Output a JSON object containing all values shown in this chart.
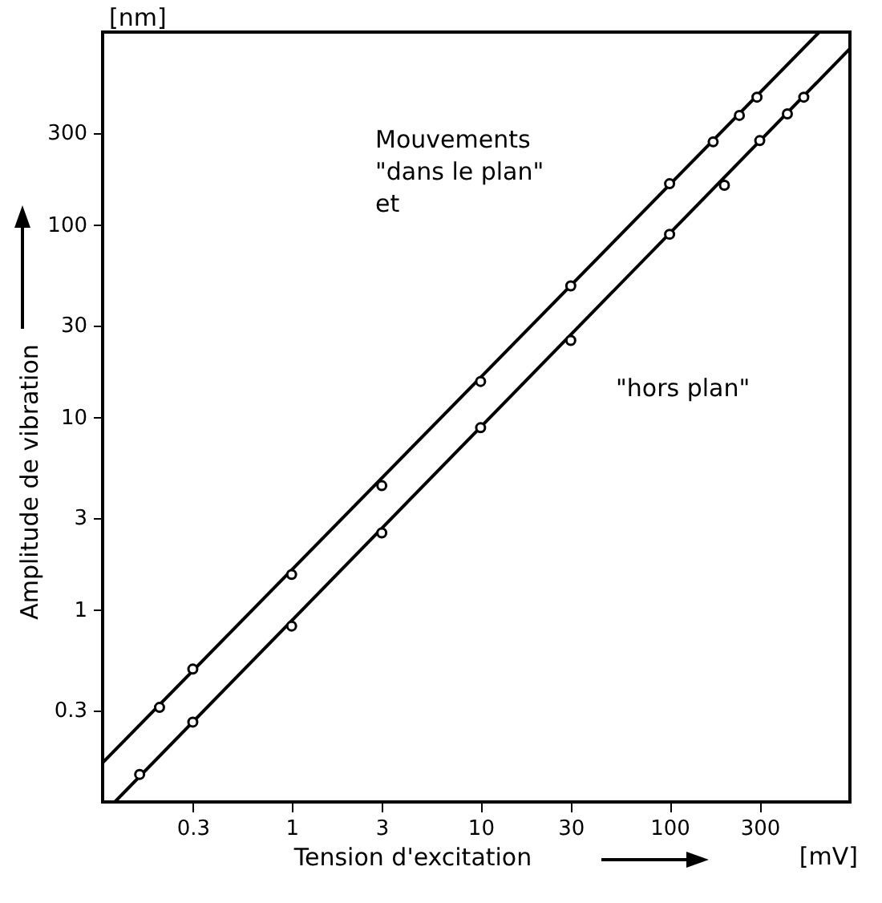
{
  "chart_data": {
    "type": "scatter",
    "xlabel": "Tension d'excitation",
    "ylabel": "Amplitude de vibration",
    "log": "xy",
    "grid": false,
    "xlim": [
      0.1,
      900
    ],
    "ylim": [
      0.1,
      1000
    ],
    "xticks": [
      0.3,
      1,
      3,
      10,
      30,
      100,
      300
    ],
    "yticks": [
      0.3,
      1,
      3,
      10,
      30,
      100,
      300
    ],
    "series": [
      {
        "type": "line",
        "marker": "none",
        "color": "#000000",
        "x": [
          0.1,
          620
        ],
        "values": [
          0.16,
          1000
        ]
      },
      {
        "type": "line",
        "marker": "none",
        "color": "#000000",
        "x": [
          0.116,
          900
        ],
        "values": [
          0.1,
          820
        ]
      },
      {
        "marker": "circle",
        "color": "#000000",
        "x": [
          0.2,
          0.3,
          1,
          3,
          10,
          30,
          100,
          170,
          234,
          290
        ],
        "values": [
          0.31,
          0.49,
          1.52,
          4.4,
          15.3,
          48,
          163,
          269,
          369,
          459
        ]
      },
      {
        "marker": "circle",
        "color": "#000000",
        "x": [
          0.157,
          0.3,
          1,
          3,
          10,
          30,
          100,
          195,
          300,
          420,
          513
        ],
        "values": [
          0.139,
          0.26,
          0.82,
          2.5,
          8.8,
          25,
          89,
          160,
          273,
          376,
          459
        ]
      }
    ],
    "annotations": [
      "[nm]",
      "[mV]",
      "Mouvements\n\"dans le plan\"\net",
      "\"hors plan\""
    ]
  }
}
